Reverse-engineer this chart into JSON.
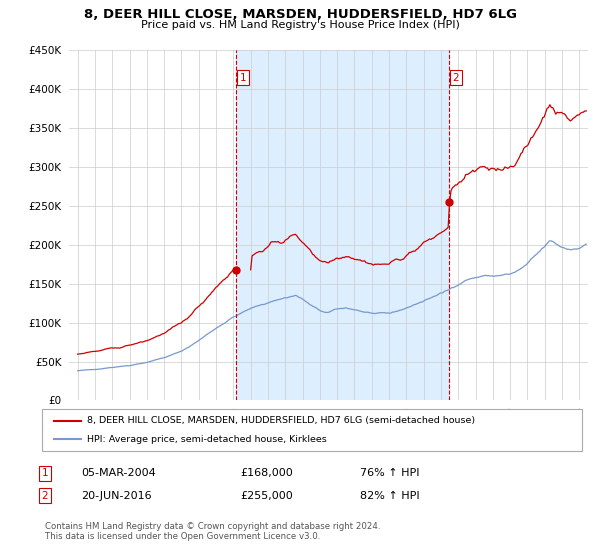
{
  "title": "8, DEER HILL CLOSE, MARSDEN, HUDDERSFIELD, HD7 6LG",
  "subtitle": "Price paid vs. HM Land Registry's House Price Index (HPI)",
  "legend_line1": "8, DEER HILL CLOSE, MARSDEN, HUDDERSFIELD, HD7 6LG (semi-detached house)",
  "legend_line2": "HPI: Average price, semi-detached house, Kirklees",
  "sale1_date": "05-MAR-2004",
  "sale1_price": 168000,
  "sale1_hpi": "76% ↑ HPI",
  "sale2_date": "20-JUN-2016",
  "sale2_price": 255000,
  "sale2_hpi": "82% ↑ HPI",
  "footer": "Contains HM Land Registry data © Crown copyright and database right 2024.\nThis data is licensed under the Open Government Licence v3.0.",
  "property_color": "#cc0000",
  "hpi_color": "#7799cc",
  "vline_color": "#cc0000",
  "shade_color": "#ddeeff",
  "background_color": "#ffffff",
  "grid_color": "#cccccc",
  "ylim_max": 450000,
  "sale1_x": 2004.17,
  "sale2_x": 2016.47,
  "xlim_min": 1995.0,
  "xlim_max": 2024.5
}
